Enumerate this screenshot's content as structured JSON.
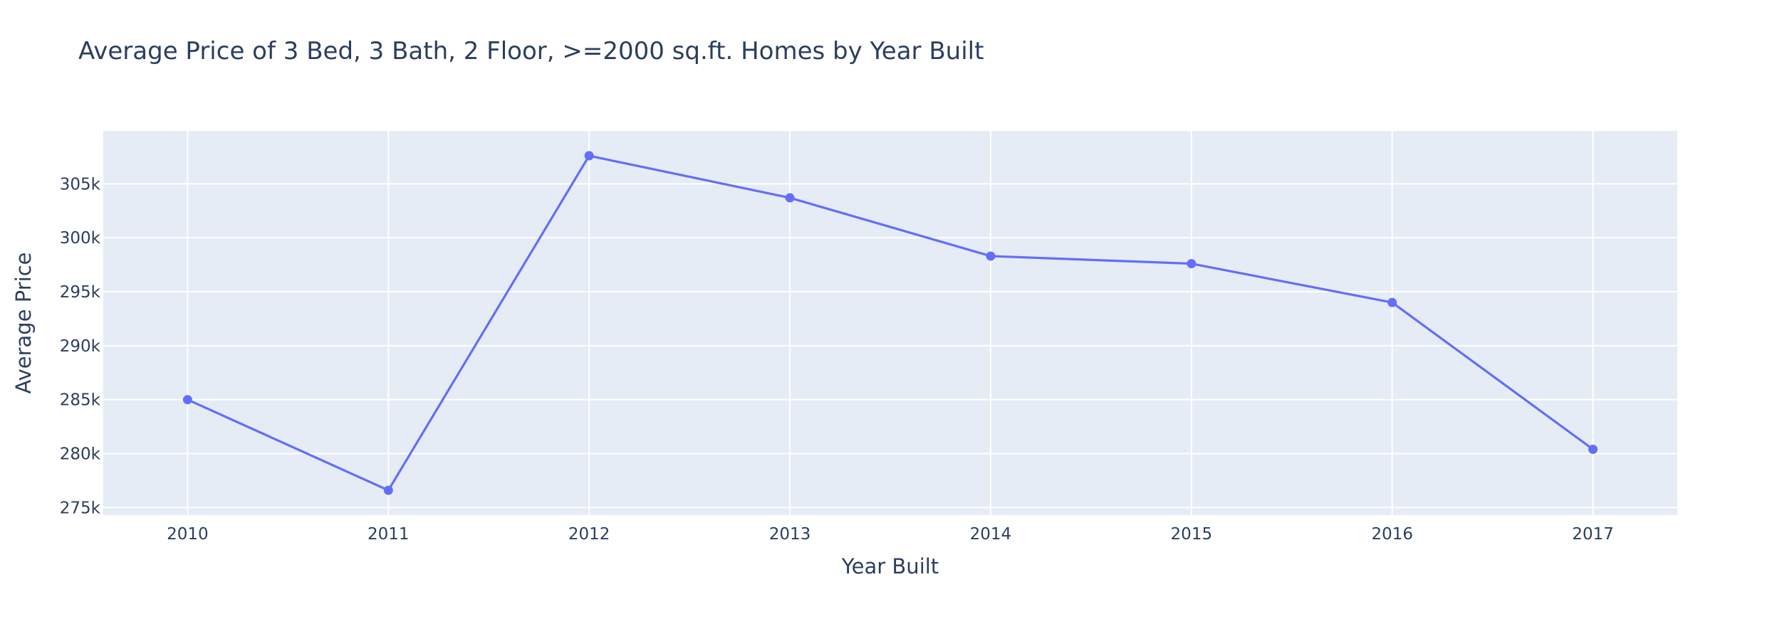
{
  "chart_data": {
    "type": "line",
    "title": "Average Price of 3 Bed, 3 Bath, 2 Floor, >=2000 sq.ft. Homes by Year Built",
    "xlabel": "Year Built",
    "ylabel": "Average Price",
    "x": [
      2010,
      2011,
      2012,
      2013,
      2014,
      2015,
      2016,
      2017
    ],
    "x_tick_labels": [
      "2010",
      "2011",
      "2012",
      "2013",
      "2014",
      "2015",
      "2016",
      "2017"
    ],
    "y_ticks": [
      275000,
      280000,
      285000,
      290000,
      295000,
      300000,
      305000
    ],
    "y_tick_labels": [
      "275k",
      "280k",
      "285k",
      "290k",
      "295k",
      "300k",
      "305k"
    ],
    "series": [
      {
        "values": [
          285000,
          276600,
          307600,
          303700,
          298300,
          297600,
          294000,
          280400
        ]
      }
    ],
    "xlim": [
      2009.58,
      2017.42
    ],
    "ylim": [
      274300,
      309900
    ],
    "grid": true,
    "legend": "none",
    "colors": {
      "line": "#636efa",
      "plot_background": "#e5ecf6",
      "grid": "#ffffff",
      "text": "#2a3f5f"
    }
  }
}
